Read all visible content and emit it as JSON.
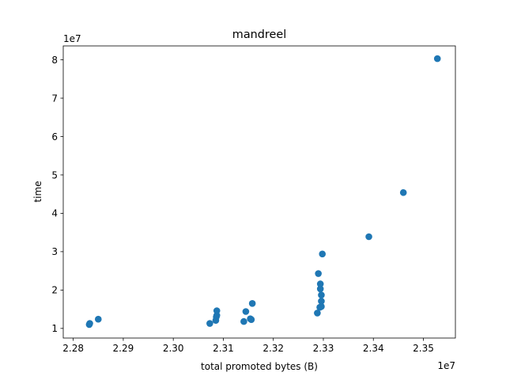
{
  "chart_data": {
    "type": "scatter",
    "title": "mandreel",
    "xlabel": "total promoted bytes (B)",
    "ylabel": "time",
    "x_offset_label": "1e7",
    "y_offset_label": "1e7",
    "x_scale_factor": 10000000,
    "y_scale_factor": 10000000,
    "xlim": [
      22780000,
      23564000
    ],
    "ylim": [
      7490000,
      83620000
    ],
    "x_ticks": [
      {
        "value": 22800000,
        "label": "2.28"
      },
      {
        "value": 22900000,
        "label": "2.29"
      },
      {
        "value": 23000000,
        "label": "2.30"
      },
      {
        "value": 23100000,
        "label": "2.31"
      },
      {
        "value": 23200000,
        "label": "2.32"
      },
      {
        "value": 23300000,
        "label": "2.33"
      },
      {
        "value": 23400000,
        "label": "2.34"
      },
      {
        "value": 23500000,
        "label": "2.35"
      }
    ],
    "y_ticks": [
      {
        "value": 10000000,
        "label": "1"
      },
      {
        "value": 20000000,
        "label": "2"
      },
      {
        "value": 30000000,
        "label": "3"
      },
      {
        "value": 40000000,
        "label": "4"
      },
      {
        "value": 50000000,
        "label": "5"
      },
      {
        "value": 60000000,
        "label": "6"
      },
      {
        "value": 70000000,
        "label": "7"
      },
      {
        "value": 80000000,
        "label": "8"
      }
    ],
    "grid": false,
    "legend": "none",
    "marker_color": "#1f77b4",
    "series": [
      {
        "points": [
          {
            "x": 22832000,
            "y": 11000000
          },
          {
            "x": 22833000,
            "y": 11300000
          },
          {
            "x": 22850000,
            "y": 12400000
          },
          {
            "x": 23073000,
            "y": 11300000
          },
          {
            "x": 23085000,
            "y": 12100000
          },
          {
            "x": 23086000,
            "y": 13000000
          },
          {
            "x": 23087000,
            "y": 13400000
          },
          {
            "x": 23087000,
            "y": 14600000
          },
          {
            "x": 23141000,
            "y": 11800000
          },
          {
            "x": 23145000,
            "y": 14400000
          },
          {
            "x": 23154000,
            "y": 12500000
          },
          {
            "x": 23156000,
            "y": 12300000
          },
          {
            "x": 23158000,
            "y": 16500000
          },
          {
            "x": 23288000,
            "y": 14000000
          },
          {
            "x": 23290000,
            "y": 24300000
          },
          {
            "x": 23293000,
            "y": 15500000
          },
          {
            "x": 23294000,
            "y": 20300000
          },
          {
            "x": 23294000,
            "y": 21600000
          },
          {
            "x": 23296000,
            "y": 15700000
          },
          {
            "x": 23296000,
            "y": 17100000
          },
          {
            "x": 23296000,
            "y": 18700000
          },
          {
            "x": 23298000,
            "y": 29400000
          },
          {
            "x": 23391000,
            "y": 33900000
          },
          {
            "x": 23460000,
            "y": 45400000
          },
          {
            "x": 23528000,
            "y": 80300000
          }
        ]
      }
    ]
  }
}
